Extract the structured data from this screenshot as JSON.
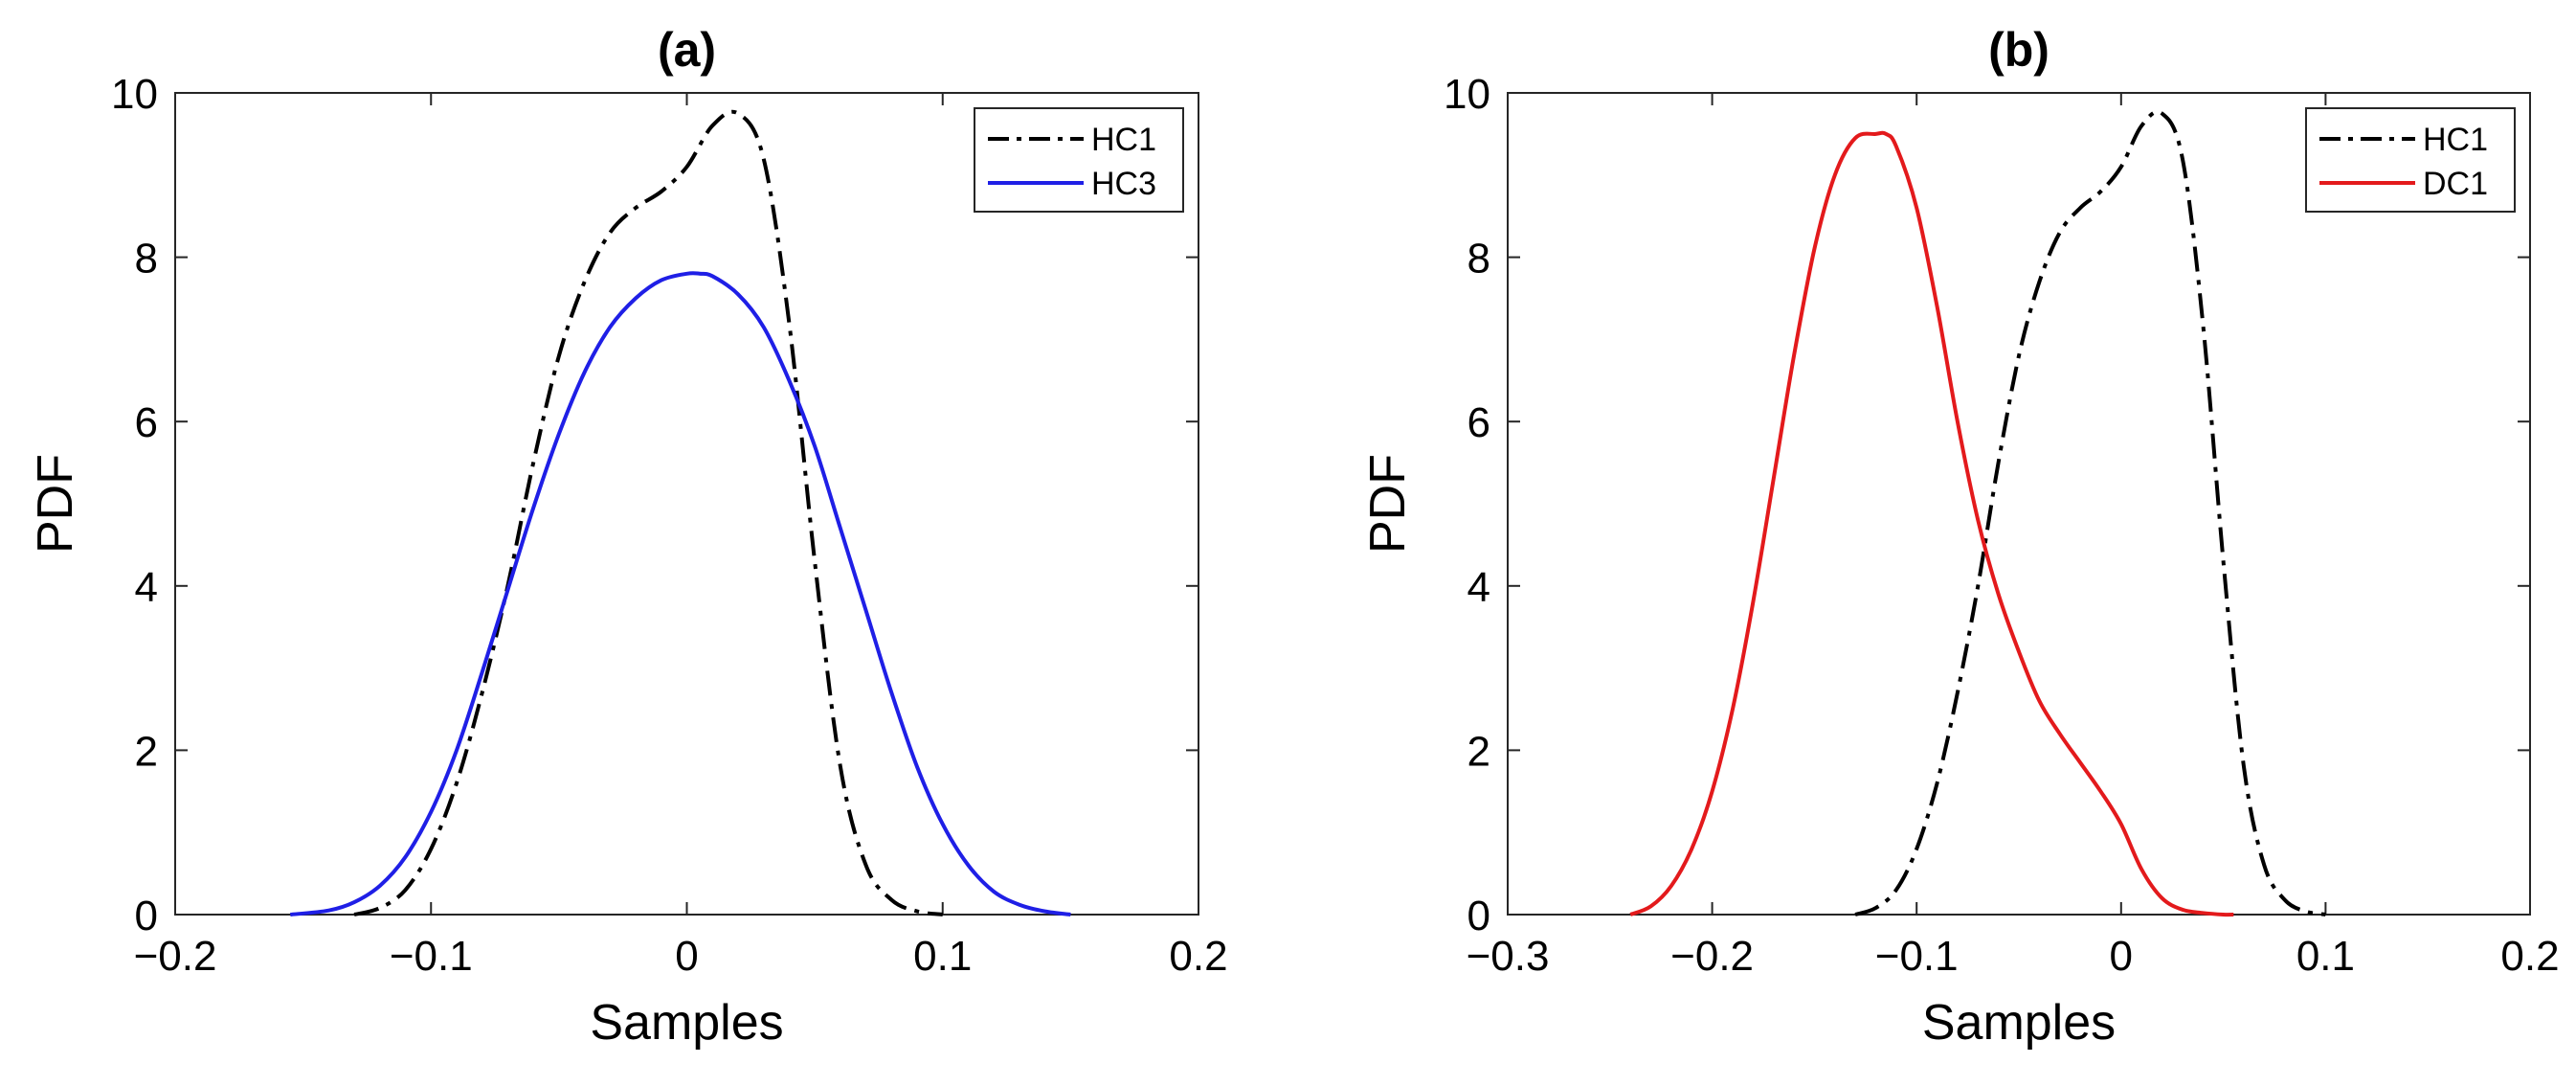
{
  "chart_data": [
    {
      "type": "line",
      "title": "(a)",
      "xlabel": "Samples",
      "ylabel": "PDF",
      "xlim": [
        -0.2,
        0.2
      ],
      "ylim": [
        0,
        10
      ],
      "xticks": [
        -0.2,
        -0.1,
        0,
        0.1,
        0.2
      ],
      "xtick_labels": [
        "−0.2",
        "−0.1",
        "0",
        "0.1",
        "0.2"
      ],
      "yticks": [
        0,
        2,
        4,
        6,
        8,
        10
      ],
      "ytick_labels": [
        "0",
        "2",
        "4",
        "6",
        "8",
        "10"
      ],
      "grid": false,
      "legend_position": "top-right",
      "series": [
        {
          "name": "HC1",
          "color": "#000000",
          "style": "dash-dot",
          "x": [
            -0.13,
            -0.12,
            -0.11,
            -0.1,
            -0.09,
            -0.08,
            -0.07,
            -0.06,
            -0.05,
            -0.04,
            -0.03,
            -0.02,
            -0.01,
            0,
            0.01,
            0.02,
            0.03,
            0.04,
            0.05,
            0.06,
            0.07,
            0.08,
            0.09,
            0.1
          ],
          "y": [
            0,
            0.08,
            0.3,
            0.8,
            1.6,
            2.7,
            4.0,
            5.5,
            6.8,
            7.7,
            8.3,
            8.6,
            8.8,
            9.1,
            9.6,
            9.75,
            9.2,
            7.2,
            4.3,
            1.8,
            0.6,
            0.18,
            0.04,
            0
          ]
        },
        {
          "name": "HC3",
          "color": "#1f1fe6",
          "style": "solid",
          "x": [
            -0.155,
            -0.14,
            -0.13,
            -0.12,
            -0.11,
            -0.1,
            -0.09,
            -0.08,
            -0.07,
            -0.06,
            -0.05,
            -0.04,
            -0.03,
            -0.02,
            -0.01,
            0,
            0.005,
            0.01,
            0.02,
            0.03,
            0.04,
            0.05,
            0.06,
            0.07,
            0.08,
            0.09,
            0.1,
            0.11,
            0.12,
            0.13,
            0.14,
            0.15
          ],
          "y": [
            0,
            0.05,
            0.15,
            0.35,
            0.7,
            1.25,
            2.0,
            2.95,
            3.95,
            4.95,
            5.85,
            6.6,
            7.15,
            7.5,
            7.72,
            7.8,
            7.8,
            7.77,
            7.55,
            7.15,
            6.5,
            5.7,
            4.7,
            3.7,
            2.7,
            1.8,
            1.1,
            0.6,
            0.28,
            0.12,
            0.04,
            0
          ]
        }
      ]
    },
    {
      "type": "line",
      "title": "(b)",
      "xlabel": "Samples",
      "ylabel": "PDF",
      "xlim": [
        -0.3,
        0.2
      ],
      "ylim": [
        0,
        10
      ],
      "xticks": [
        -0.3,
        -0.2,
        -0.1,
        0,
        0.1,
        0.2
      ],
      "xtick_labels": [
        "−0.3",
        "−0.2",
        "−0.1",
        "0",
        "0.1",
        "0.2"
      ],
      "yticks": [
        0,
        2,
        4,
        6,
        8,
        10
      ],
      "ytick_labels": [
        "0",
        "2",
        "4",
        "6",
        "8",
        "10"
      ],
      "grid": false,
      "legend_position": "top-right",
      "series": [
        {
          "name": "HC1",
          "color": "#000000",
          "style": "dash-dot",
          "x": [
            -0.13,
            -0.12,
            -0.11,
            -0.1,
            -0.09,
            -0.08,
            -0.07,
            -0.06,
            -0.05,
            -0.04,
            -0.03,
            -0.02,
            -0.01,
            0,
            0.01,
            0.02,
            0.03,
            0.04,
            0.05,
            0.06,
            0.07,
            0.08,
            0.09,
            0.1
          ],
          "y": [
            0,
            0.08,
            0.3,
            0.8,
            1.6,
            2.7,
            4.0,
            5.5,
            6.8,
            7.7,
            8.3,
            8.6,
            8.8,
            9.1,
            9.6,
            9.75,
            9.2,
            7.2,
            4.3,
            1.8,
            0.6,
            0.18,
            0.04,
            0
          ]
        },
        {
          "name": "DC1",
          "color": "#e31a1c",
          "style": "solid",
          "x": [
            -0.24,
            -0.23,
            -0.22,
            -0.21,
            -0.2,
            -0.19,
            -0.18,
            -0.17,
            -0.16,
            -0.15,
            -0.14,
            -0.13,
            -0.12,
            -0.115,
            -0.11,
            -0.1,
            -0.09,
            -0.08,
            -0.07,
            -0.06,
            -0.05,
            -0.04,
            -0.03,
            -0.02,
            -0.01,
            0,
            0.01,
            0.02,
            0.03,
            0.04,
            0.05,
            0.055
          ],
          "y": [
            0,
            0.1,
            0.35,
            0.8,
            1.5,
            2.5,
            3.8,
            5.3,
            6.8,
            8.1,
            9.0,
            9.45,
            9.5,
            9.5,
            9.35,
            8.6,
            7.4,
            6.0,
            4.8,
            3.9,
            3.2,
            2.6,
            2.2,
            1.85,
            1.5,
            1.1,
            0.55,
            0.2,
            0.06,
            0.02,
            0,
            0
          ]
        }
      ]
    }
  ]
}
